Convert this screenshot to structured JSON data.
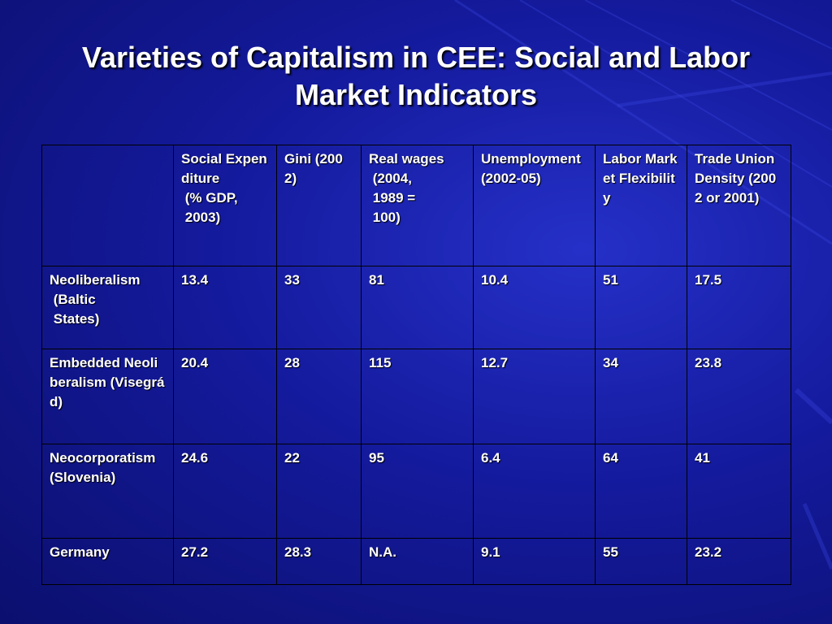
{
  "slide": {
    "title": "Varieties of Capitalism in CEE: Social and Labor Market Indicators"
  },
  "table": {
    "headers": [
      "",
      "Social Expenditure\n (% GDP,\n 2003)",
      "Gini (2002)",
      "Real wages\n (2004,\n 1989 =\n 100)",
      "Unemployment\n(2002-05)",
      "Labor Market Flexibility",
      "Trade Union Density (2002 or 2001)"
    ],
    "rows": [
      [
        "Neoliberalism\n (Baltic\n States)",
        "13.4",
        "33",
        "81",
        "10.4",
        "51",
        "17.5"
      ],
      [
        "Embedded Neoliberalism (Visegrád)",
        "20.4",
        "28",
        "115",
        "12.7",
        "34",
        "23.8"
      ],
      [
        "Neocorporatism\n(Slovenia)",
        "24.6",
        "22",
        "95",
        "6.4",
        "64",
        "41"
      ],
      [
        "Germany",
        "27.2",
        "28.3",
        "N.A.",
        "9.1",
        "55",
        "23.2"
      ]
    ]
  },
  "colors": {
    "background": "#0f1490",
    "text": "#ffffff",
    "border": "#000000"
  }
}
